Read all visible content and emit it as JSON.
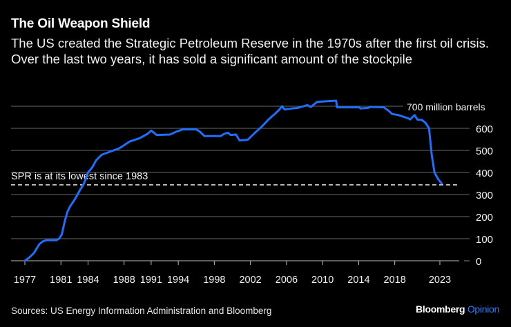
{
  "header": {
    "title": "The Oil Weapon Shield",
    "subtitle": "The US created the Strategic Petroleum Reserve in the 1970s after the first oil crisis. Over the last two years, it has sold a significant amount of the stockpile"
  },
  "footer": {
    "source": "Sources: US Energy Information Administration and Bloomberg",
    "brand_name": "Bloomberg",
    "brand_suffix": "Opinion"
  },
  "colors": {
    "background": "#000000",
    "line": "#1f6fff",
    "grid": "#555555",
    "brand_accent": "#2b7fff"
  },
  "chart_data": {
    "type": "line",
    "title": "The Oil Weapon Shield",
    "xlabel": "",
    "ylabel": "million barrels",
    "ylim": [
      0,
      700
    ],
    "xlim": [
      1976.2,
      2025.3
    ],
    "y_ticks": [
      0,
      100,
      200,
      300,
      400,
      500,
      600,
      700
    ],
    "y_tick_labels": [
      "0",
      "100",
      "200",
      "300",
      "400",
      "500",
      "600",
      "700 million barrels"
    ],
    "x_ticks": [
      1977,
      1981,
      1984,
      1988,
      1991,
      1994,
      1998,
      2002,
      2006,
      2010,
      2014,
      2018,
      2023
    ],
    "x_tick_labels": [
      "1977",
      "1981",
      "1984",
      "1988",
      "1991",
      "1994",
      "1998",
      "2002",
      "2006",
      "2010",
      "2014",
      "2018",
      "2023"
    ],
    "grid": true,
    "legend": "none",
    "annotations": [
      {
        "text": "SPR is at its lowest since 1983",
        "y": 347,
        "style": "dashed-line"
      }
    ],
    "series": [
      {
        "name": "Strategic Petroleum Reserve",
        "x": [
          1977.0,
          1977.5,
          1978.0,
          1978.6,
          1979.0,
          1979.4,
          1980.0,
          1980.5,
          1980.8,
          1981.1,
          1981.4,
          1981.7,
          1982.0,
          1982.4,
          1982.7,
          1983.1,
          1983.5,
          1984.0,
          1984.5,
          1984.9,
          1985.5,
          1986.5,
          1987.5,
          1988.6,
          1989.7,
          1990.6,
          1991.0,
          1991.6,
          1993.1,
          1993.8,
          1994.5,
          1996.0,
          1996.4,
          1996.9,
          1998.7,
          1999.1,
          1999.5,
          1999.8,
          2000.4,
          2000.8,
          2001.7,
          2002.5,
          2003.2,
          2004.0,
          2004.7,
          2005.1,
          2005.5,
          2005.8,
          2006.6,
          2007.3,
          2008.3,
          2008.7,
          2009.4,
          2011.5,
          2011.6,
          2014.1,
          2014.2,
          2015.1,
          2015.3,
          2016.8,
          2017.3,
          2017.7,
          2018.4,
          2019.5,
          2019.7,
          2020.2,
          2020.5,
          2021.0,
          2021.4,
          2021.8,
          2022.1,
          2022.4,
          2022.8,
          2023.2
        ],
        "values": [
          0,
          15,
          35,
          75,
          88,
          93,
          93,
          93,
          100,
          120,
          175,
          220,
          245,
          270,
          290,
          320,
          345,
          400,
          425,
          455,
          480,
          495,
          510,
          540,
          555,
          575,
          590,
          570,
          572,
          585,
          595,
          595,
          585,
          565,
          565,
          575,
          580,
          570,
          572,
          545,
          548,
          580,
          605,
          640,
          665,
          680,
          700,
          685,
          690,
          693,
          705,
          697,
          720,
          725,
          695,
          695,
          690,
          693,
          697,
          695,
          680,
          665,
          660,
          645,
          640,
          660,
          640,
          638,
          625,
          600,
          480,
          400,
          370,
          350
        ]
      }
    ]
  }
}
